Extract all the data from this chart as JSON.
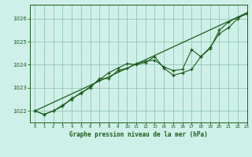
{
  "title": "Graphe pression niveau de la mer (hPa)",
  "bg_color": "#cff0e8",
  "plot_bg_color": "#cff0e8",
  "grid_color": "#99ccbb",
  "line_color": "#1a5c1a",
  "xlim": [
    -0.5,
    23
  ],
  "ylim": [
    1021.5,
    1026.6
  ],
  "yticks": [
    1022,
    1023,
    1024,
    1025,
    1026
  ],
  "xticks": [
    0,
    1,
    2,
    3,
    4,
    5,
    6,
    7,
    8,
    9,
    10,
    11,
    12,
    13,
    14,
    15,
    16,
    17,
    18,
    19,
    20,
    21,
    22,
    23
  ],
  "series1_x": [
    0,
    1,
    2,
    3,
    4,
    5,
    6,
    7,
    8,
    9,
    10,
    11,
    12,
    13,
    14,
    15,
    16,
    17,
    18,
    19,
    20,
    21,
    22,
    23
  ],
  "series1_y": [
    1022.0,
    1021.85,
    1022.0,
    1022.2,
    1022.55,
    1022.75,
    1023.05,
    1023.35,
    1023.65,
    1023.85,
    1024.05,
    1024.0,
    1024.1,
    1024.35,
    1023.85,
    1023.55,
    1023.65,
    1023.8,
    1024.35,
    1024.75,
    1025.35,
    1025.6,
    1026.0,
    1026.25
  ],
  "series2_x": [
    0,
    1,
    2,
    3,
    4,
    5,
    6,
    7,
    8,
    9,
    10,
    11,
    12,
    13,
    14,
    15,
    16,
    17,
    18,
    19,
    20,
    21,
    22,
    23
  ],
  "series2_y": [
    1022.0,
    1021.85,
    1022.0,
    1022.25,
    1022.5,
    1022.8,
    1023.0,
    1023.4,
    1023.4,
    1023.75,
    1023.85,
    1024.05,
    1024.15,
    1024.2,
    1023.9,
    1023.75,
    1023.8,
    1024.65,
    1024.35,
    1024.7,
    1025.5,
    1025.85,
    1026.05,
    1026.2
  ],
  "trend_x": [
    0,
    23
  ],
  "trend_y": [
    1022.0,
    1026.25
  ]
}
